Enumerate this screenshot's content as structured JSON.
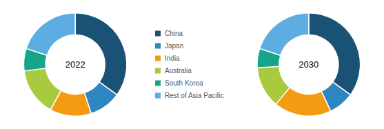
{
  "chart_data": {
    "type": "donut",
    "categories": [
      "China",
      "Japan",
      "India",
      "Australia",
      "South Korea",
      "Rest of Asia Pacific"
    ],
    "colors": [
      "#1a5276",
      "#2e86c1",
      "#f39c12",
      "#a9c93e",
      "#17a589",
      "#5dade2"
    ],
    "series": [
      {
        "name": "2022",
        "values": [
          35,
          10,
          13,
          15,
          7,
          20
        ]
      },
      {
        "name": "2030",
        "values": [
          35,
          8,
          18,
          13,
          6,
          20
        ]
      }
    ],
    "legend": "center"
  }
}
